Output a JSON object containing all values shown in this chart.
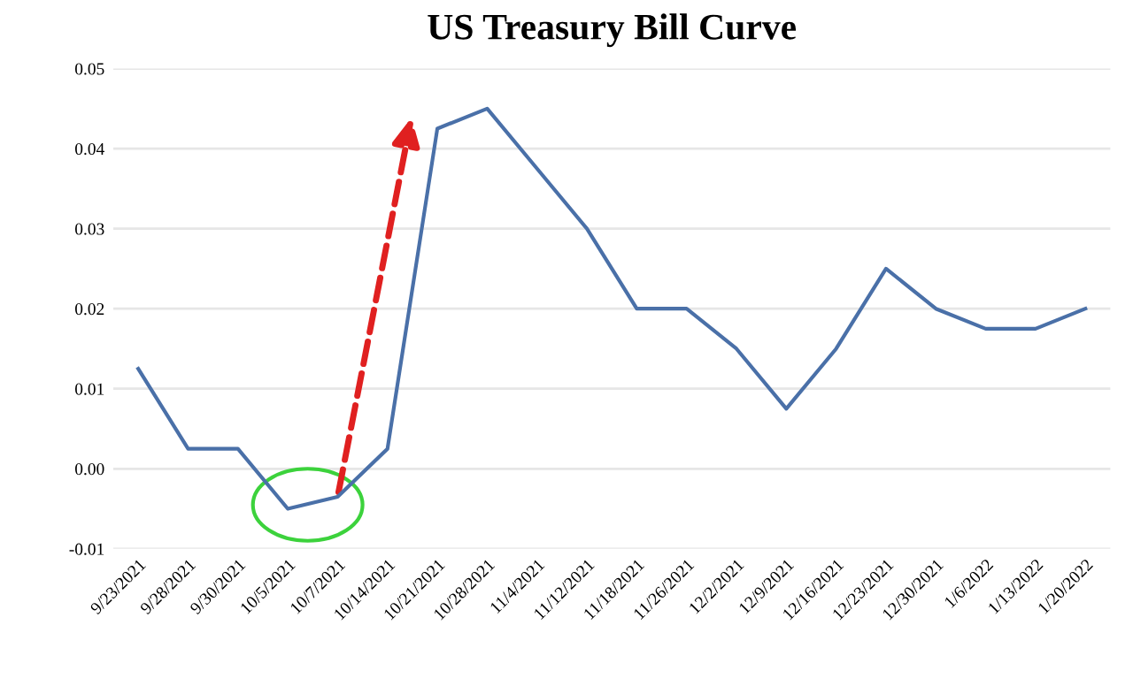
{
  "chart_data": {
    "type": "line",
    "title": "US Treasury Bill Curve",
    "categories": [
      "9/23/2021",
      "9/28/2021",
      "9/30/2021",
      "10/5/2021",
      "10/7/2021",
      "10/14/2021",
      "10/21/2021",
      "10/28/2021",
      "11/4/2021",
      "11/12/2021",
      "11/18/2021",
      "11/26/2021",
      "12/2/2021",
      "12/9/2021",
      "12/16/2021",
      "12/23/2021",
      "12/30/2021",
      "1/6/2022",
      "1/13/2022",
      "1/20/2022"
    ],
    "series": [
      {
        "color": "#4a70a8",
        "values": [
          0.0125,
          0.0025,
          0.0025,
          -0.005,
          -0.0035,
          0.0025,
          0.0425,
          0.045,
          0.0375,
          0.03,
          0.02,
          0.02,
          0.015,
          0.0075,
          0.015,
          0.025,
          0.02,
          0.0175,
          0.0175,
          0.02
        ]
      }
    ],
    "ylim": [
      -0.01,
      0.05
    ],
    "yticks": [
      {
        "value": -0.01,
        "label": "-0.01"
      },
      {
        "value": 0,
        "label": "0.00"
      },
      {
        "value": 0.01,
        "label": "0.01"
      },
      {
        "value": 0.02,
        "label": "0.02"
      },
      {
        "value": 0.03,
        "label": "0.03"
      },
      {
        "value": 0.04,
        "label": "0.04"
      },
      {
        "value": 0.05,
        "label": "0.05"
      }
    ],
    "grid": "y",
    "legend": false,
    "marker": "none",
    "line_style": "solid"
  }
}
